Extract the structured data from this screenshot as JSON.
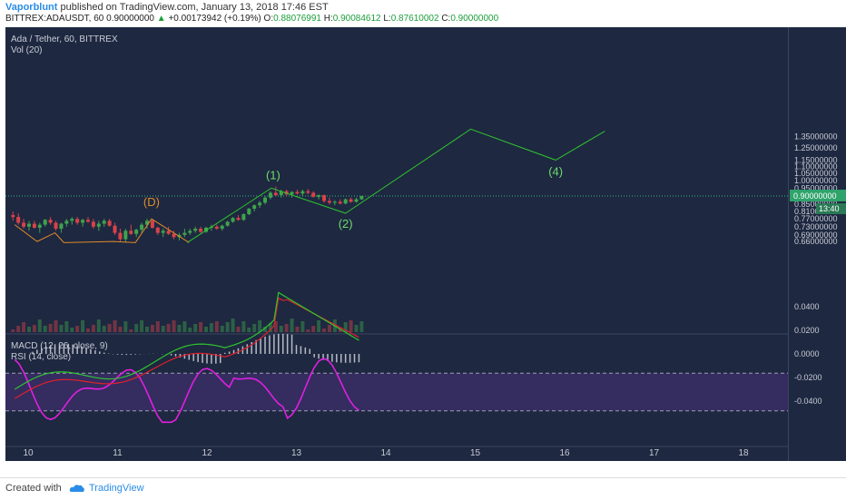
{
  "header": {
    "author": "Vaporblunt",
    "published": "published on TradingView.com, January 13, 2018 17:46 EST",
    "symbol": "BITTREX:ADAUSDT, 60",
    "price": "0.90000000",
    "arrow": "▲",
    "change": "+0.00173942 (+0.19%)",
    "o_label": "O:",
    "o_val": "0.88076991",
    "h_label": "H:",
    "h_val": "0.90084612",
    "l_label": "L:",
    "l_val": "0.87610002",
    "c_label": "C:",
    "c_val": "0.90000000"
  },
  "legend": {
    "title": "Ada / Tether, 60, BITTREX",
    "vol": "Vol (20)",
    "macd": "MACD (12, 26, close, 9)",
    "rsi": "RSI (14, close)"
  },
  "price_tag": {
    "value": "0.90000000",
    "timer": "13:40"
  },
  "footer": {
    "created": "Created with",
    "brand": "TradingView"
  },
  "colors": {
    "background": "#1e2840",
    "up": "#3fa34d",
    "down": "#d9424a",
    "wave": "#2fc42f",
    "wave_label": "#6edc6e",
    "d_wave": "#e08a2a",
    "macd": "#2fc42f",
    "signal": "#e0202a",
    "rsi": "#e020e0",
    "rsi_band": "#3a2d66"
  },
  "chart_data": {
    "type": "candlestick",
    "x_tick_labels": [
      "10",
      "11",
      "12",
      "13",
      "14",
      "15",
      "16",
      "17",
      "18"
    ],
    "price_axis": {
      "scale": "log",
      "ticks": [
        "1.35000000",
        "1.25000000",
        "1.15000000",
        "1.10000000",
        "1.05000000",
        "1.00000000",
        "0.95000000",
        "0.90000000",
        "0.85000000",
        "0.81000000",
        "0.77000000",
        "0.73000000",
        "0.69000000",
        "0.66000000"
      ]
    },
    "macd_axis": {
      "ticks": [
        "0.0400",
        "0.0200",
        "0.0000",
        "-0.0200",
        "-0.0400"
      ]
    },
    "wave_labels": [
      "(D)",
      "(1)",
      "(2)",
      "(4)"
    ],
    "wave_points": [
      {
        "label": "(1)",
        "x": 12.75,
        "price": 0.95
      },
      {
        "label": "(2)",
        "x": 13.55,
        "price": 0.8
      },
      {
        "label": "(4)",
        "x": 15.9,
        "price": 1.15
      }
    ],
    "candles": [
      [
        9.83,
        0.79,
        0.81,
        0.76,
        0.78
      ],
      [
        9.89,
        0.78,
        0.8,
        0.74,
        0.75
      ],
      [
        9.95,
        0.75,
        0.77,
        0.72,
        0.73
      ],
      [
        10.01,
        0.73,
        0.76,
        0.71,
        0.745
      ],
      [
        10.07,
        0.745,
        0.76,
        0.72,
        0.725
      ],
      [
        10.13,
        0.725,
        0.75,
        0.7,
        0.74
      ],
      [
        10.19,
        0.74,
        0.77,
        0.73,
        0.765
      ],
      [
        10.25,
        0.765,
        0.78,
        0.74,
        0.75
      ],
      [
        10.31,
        0.75,
        0.76,
        0.71,
        0.72
      ],
      [
        10.37,
        0.72,
        0.75,
        0.7,
        0.745
      ],
      [
        10.43,
        0.745,
        0.77,
        0.73,
        0.76
      ],
      [
        10.49,
        0.76,
        0.78,
        0.74,
        0.77
      ],
      [
        10.55,
        0.77,
        0.78,
        0.74,
        0.75
      ],
      [
        10.61,
        0.75,
        0.77,
        0.73,
        0.765
      ],
      [
        10.67,
        0.765,
        0.78,
        0.75,
        0.755
      ],
      [
        10.73,
        0.755,
        0.77,
        0.72,
        0.73
      ],
      [
        10.79,
        0.73,
        0.76,
        0.71,
        0.745
      ],
      [
        10.85,
        0.745,
        0.77,
        0.73,
        0.76
      ],
      [
        10.91,
        0.76,
        0.77,
        0.73,
        0.735
      ],
      [
        10.97,
        0.735,
        0.75,
        0.69,
        0.7
      ],
      [
        11.03,
        0.7,
        0.72,
        0.66,
        0.67
      ],
      [
        11.09,
        0.67,
        0.72,
        0.655,
        0.71
      ],
      [
        11.15,
        0.71,
        0.74,
        0.69,
        0.695
      ],
      [
        11.21,
        0.695,
        0.72,
        0.68,
        0.715
      ],
      [
        11.27,
        0.715,
        0.75,
        0.7,
        0.74
      ],
      [
        11.33,
        0.74,
        0.77,
        0.72,
        0.76
      ],
      [
        11.39,
        0.76,
        0.77,
        0.72,
        0.725
      ],
      [
        11.45,
        0.725,
        0.73,
        0.69,
        0.7
      ],
      [
        11.51,
        0.7,
        0.72,
        0.68,
        0.71
      ],
      [
        11.57,
        0.71,
        0.73,
        0.69,
        0.695
      ],
      [
        11.63,
        0.695,
        0.71,
        0.67,
        0.68
      ],
      [
        11.69,
        0.68,
        0.7,
        0.665,
        0.69
      ],
      [
        11.75,
        0.69,
        0.72,
        0.68,
        0.7
      ],
      [
        11.81,
        0.7,
        0.72,
        0.69,
        0.71
      ],
      [
        11.87,
        0.71,
        0.73,
        0.7,
        0.72
      ],
      [
        11.93,
        0.72,
        0.73,
        0.7,
        0.705
      ],
      [
        11.99,
        0.705,
        0.73,
        0.7,
        0.725
      ],
      [
        12.05,
        0.725,
        0.74,
        0.71,
        0.73
      ],
      [
        12.11,
        0.73,
        0.74,
        0.715,
        0.72
      ],
      [
        12.17,
        0.72,
        0.74,
        0.71,
        0.735
      ],
      [
        12.23,
        0.735,
        0.76,
        0.73,
        0.755
      ],
      [
        12.29,
        0.755,
        0.78,
        0.75,
        0.775
      ],
      [
        12.35,
        0.775,
        0.79,
        0.76,
        0.765
      ],
      [
        12.41,
        0.765,
        0.8,
        0.76,
        0.795
      ],
      [
        12.47,
        0.795,
        0.83,
        0.79,
        0.825
      ],
      [
        12.53,
        0.825,
        0.85,
        0.81,
        0.845
      ],
      [
        12.59,
        0.845,
        0.87,
        0.83,
        0.86
      ],
      [
        12.65,
        0.86,
        0.9,
        0.85,
        0.89
      ],
      [
        12.71,
        0.89,
        0.93,
        0.88,
        0.92
      ],
      [
        12.77,
        0.92,
        0.96,
        0.9,
        0.905
      ],
      [
        12.83,
        0.905,
        0.94,
        0.89,
        0.93
      ],
      [
        12.89,
        0.93,
        0.94,
        0.9,
        0.91
      ],
      [
        12.95,
        0.91,
        0.93,
        0.89,
        0.925
      ],
      [
        13.01,
        0.925,
        0.94,
        0.91,
        0.915
      ],
      [
        13.07,
        0.915,
        0.94,
        0.9,
        0.93
      ],
      [
        13.13,
        0.93,
        0.945,
        0.91,
        0.92
      ],
      [
        13.19,
        0.92,
        0.93,
        0.89,
        0.895
      ],
      [
        13.25,
        0.895,
        0.91,
        0.88,
        0.905
      ],
      [
        13.31,
        0.905,
        0.91,
        0.86,
        0.87
      ],
      [
        13.37,
        0.87,
        0.89,
        0.85,
        0.86
      ],
      [
        13.43,
        0.86,
        0.875,
        0.845,
        0.865
      ],
      [
        13.49,
        0.865,
        0.88,
        0.85,
        0.855
      ],
      [
        13.55,
        0.855,
        0.885,
        0.85,
        0.88
      ],
      [
        13.61,
        0.88,
        0.89,
        0.86,
        0.865
      ],
      [
        13.67,
        0.865,
        0.89,
        0.86,
        0.88
      ],
      [
        13.73,
        0.88,
        0.901,
        0.876,
        0.9
      ]
    ],
    "rsi_band": [
      30,
      70
    ]
  }
}
